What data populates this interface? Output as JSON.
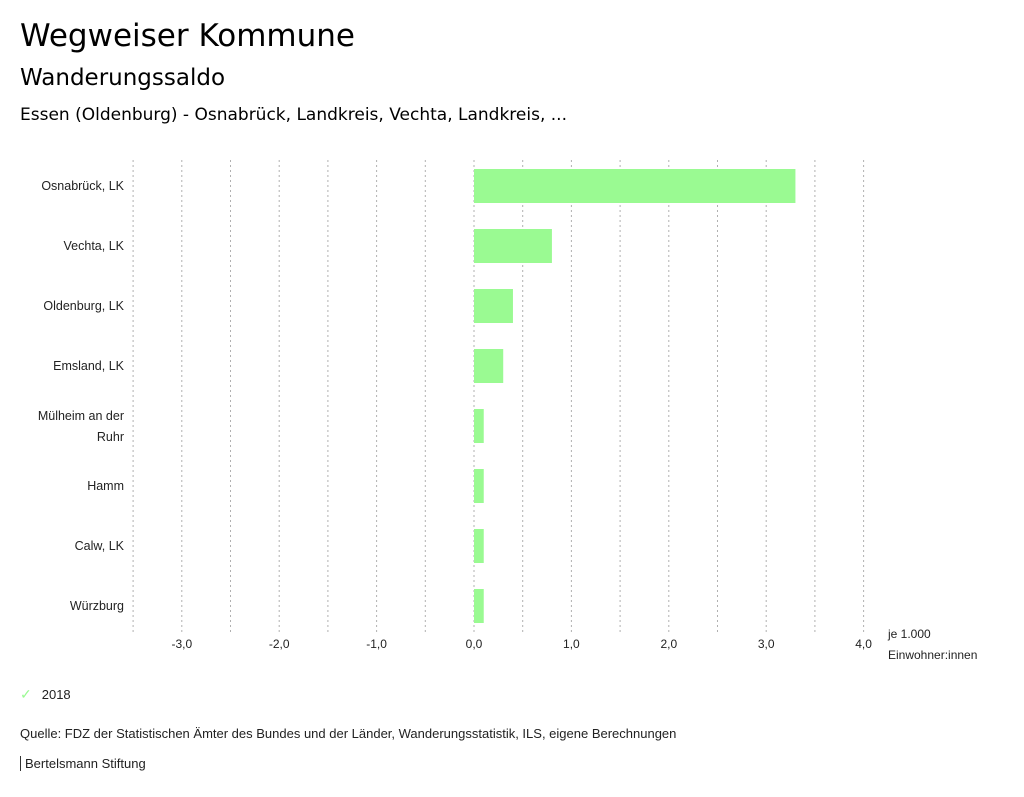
{
  "header": {
    "title": "Wegweiser Kommune",
    "subtitle": "Wanderungssaldo",
    "regions": "Essen (Oldenburg) - Osnabrück, Landkreis, Vechta, Landkreis, ..."
  },
  "chart_data": {
    "type": "bar",
    "orientation": "horizontal",
    "categories": [
      "Osnabrück, LK",
      "Vechta, LK",
      "Oldenburg, LK",
      "Emsland, LK",
      "Mülheim an der Ruhr",
      "Hamm",
      "Calw, LK",
      "Würzburg"
    ],
    "series": [
      {
        "name": "2018",
        "values": [
          3.3,
          0.8,
          0.4,
          0.3,
          0.1,
          0.1,
          0.1,
          0.1
        ],
        "color": "#9afa92"
      }
    ],
    "xlim": [
      -3.5,
      4.0
    ],
    "xticks": [
      -3,
      -2,
      -1,
      0,
      1,
      2,
      3,
      4
    ],
    "xtick_labels": [
      "-3,0",
      "-2,0",
      "-1,0",
      "0,0",
      "1,0",
      "2,0",
      "3,0",
      "4,0"
    ],
    "xlabel_line1": "je 1.000",
    "xlabel_line2": "Einwohner:innen",
    "grid": "vertical dotted every 0.5",
    "legend_placement": "bottom-left"
  },
  "legend": {
    "label": "2018",
    "icon": "check-icon"
  },
  "footer": {
    "source": "Quelle: FDZ der Statistischen Ämter des Bundes und der Länder, Wanderungsstatistik, ILS, eigene Berechnungen",
    "brand": "Bertelsmann Stiftung"
  }
}
